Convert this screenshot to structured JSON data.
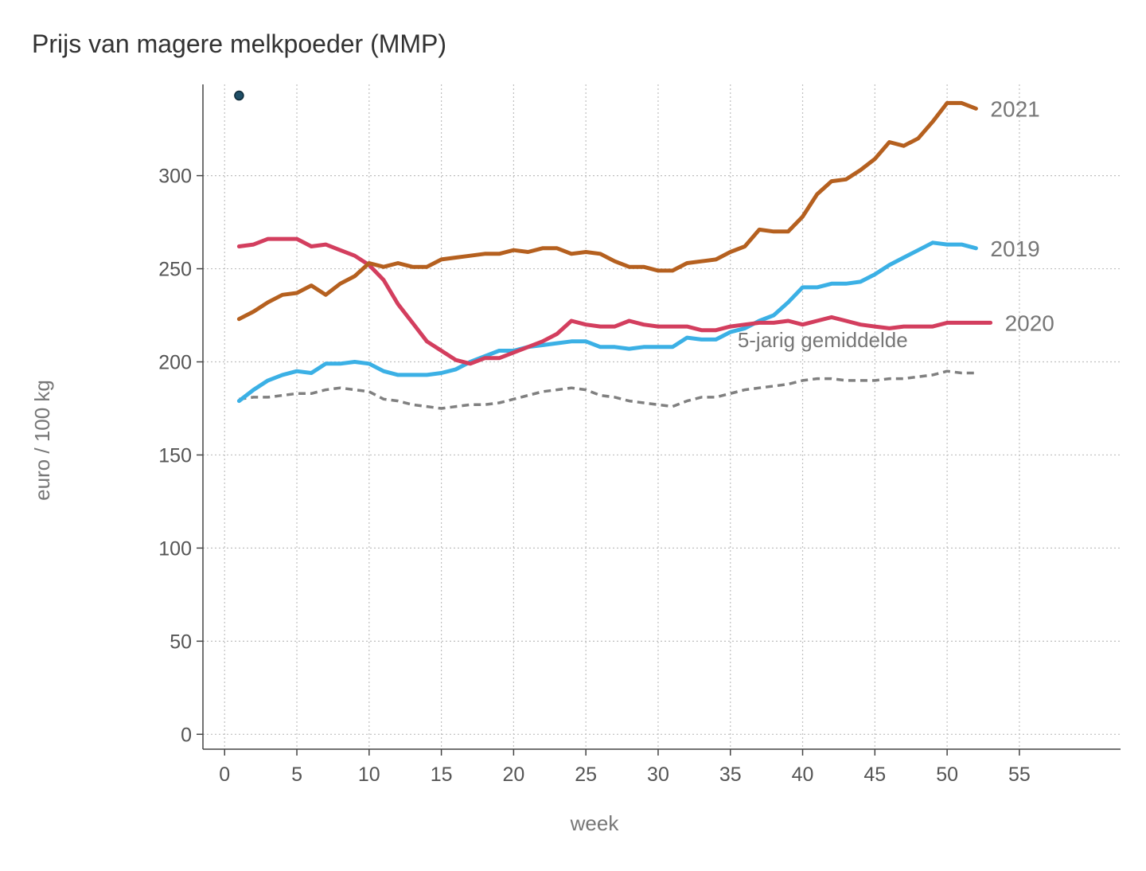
{
  "chart_data": {
    "type": "line",
    "title": "Prijs van magere melkpoeder (MMP)",
    "xlabel": "week",
    "ylabel": "euro / 100 kg",
    "xlim": [
      -1.5,
      62
    ],
    "ylim": [
      -8,
      349
    ],
    "x_ticks": [
      0,
      5,
      10,
      15,
      20,
      25,
      30,
      35,
      40,
      45,
      50,
      55
    ],
    "y_ticks": [
      0,
      50,
      100,
      150,
      200,
      250,
      300
    ],
    "grid": true,
    "marker": {
      "x": 1,
      "y": 343,
      "color": "#1f4e66"
    },
    "annotation": {
      "text": "5-jarig gemiddelde",
      "x": 35.5,
      "y": 208
    },
    "series": [
      {
        "name": "5-jarig gemiddelde",
        "label": "",
        "color": "#808080",
        "dashed": true,
        "x": [
          1,
          2,
          3,
          4,
          5,
          6,
          7,
          8,
          9,
          10,
          11,
          12,
          13,
          14,
          15,
          16,
          17,
          18,
          19,
          20,
          21,
          22,
          23,
          24,
          25,
          26,
          27,
          28,
          29,
          30,
          31,
          32,
          33,
          34,
          35,
          36,
          37,
          38,
          39,
          40,
          41,
          42,
          43,
          44,
          45,
          46,
          47,
          48,
          49,
          50,
          51,
          52
        ],
        "values": [
          180,
          181,
          181,
          182,
          183,
          183,
          185,
          186,
          185,
          184,
          180,
          179,
          177,
          176,
          175,
          176,
          177,
          177,
          178,
          180,
          182,
          184,
          185,
          186,
          185,
          182,
          181,
          179,
          178,
          177,
          176,
          179,
          181,
          181,
          183,
          185,
          186,
          187,
          188,
          190,
          191,
          191,
          190,
          190,
          190,
          191,
          191,
          192,
          193,
          195,
          194,
          194
        ]
      },
      {
        "name": "2019",
        "label": "2019",
        "color": "#3bb0e5",
        "dashed": false,
        "x": [
          1,
          2,
          3,
          4,
          5,
          6,
          7,
          8,
          9,
          10,
          11,
          12,
          13,
          14,
          15,
          16,
          17,
          18,
          19,
          20,
          21,
          22,
          23,
          24,
          25,
          26,
          27,
          28,
          29,
          30,
          31,
          32,
          33,
          34,
          35,
          36,
          37,
          38,
          39,
          40,
          41,
          42,
          43,
          44,
          45,
          46,
          47,
          48,
          49,
          50,
          51,
          52
        ],
        "values": [
          179,
          185,
          190,
          193,
          195,
          194,
          199,
          199,
          200,
          199,
          195,
          193,
          193,
          193,
          194,
          196,
          200,
          203,
          206,
          206,
          208,
          209,
          210,
          211,
          211,
          208,
          208,
          207,
          208,
          208,
          208,
          213,
          212,
          212,
          216,
          218,
          222,
          225,
          232,
          240,
          240,
          242,
          242,
          243,
          247,
          252,
          256,
          260,
          264,
          263,
          263,
          261
        ]
      },
      {
        "name": "2020",
        "label": "2020",
        "color": "#d33e5e",
        "dashed": false,
        "x": [
          1,
          2,
          3,
          4,
          5,
          6,
          7,
          8,
          9,
          10,
          11,
          12,
          13,
          14,
          15,
          16,
          17,
          18,
          19,
          20,
          21,
          22,
          23,
          24,
          25,
          26,
          27,
          28,
          29,
          30,
          31,
          32,
          33,
          34,
          35,
          36,
          37,
          38,
          39,
          40,
          41,
          42,
          43,
          44,
          45,
          46,
          47,
          48,
          49,
          50,
          51,
          52,
          53
        ],
        "values": [
          262,
          263,
          266,
          266,
          266,
          262,
          263,
          260,
          257,
          252,
          244,
          231,
          221,
          211,
          206,
          201,
          199,
          202,
          202,
          205,
          208,
          211,
          215,
          222,
          220,
          219,
          219,
          222,
          220,
          219,
          219,
          219,
          217,
          217,
          219,
          220,
          221,
          221,
          222,
          220,
          222,
          224,
          222,
          220,
          219,
          218,
          219,
          219,
          219,
          221,
          221,
          221,
          221
        ]
      },
      {
        "name": "2021",
        "label": "2021",
        "color": "#b5601f",
        "dashed": false,
        "x": [
          1,
          2,
          3,
          4,
          5,
          6,
          7,
          8,
          9,
          10,
          11,
          12,
          13,
          14,
          15,
          16,
          17,
          18,
          19,
          20,
          21,
          22,
          23,
          24,
          25,
          26,
          27,
          28,
          29,
          30,
          31,
          32,
          33,
          34,
          35,
          36,
          37,
          38,
          39,
          40,
          41,
          42,
          43,
          44,
          45,
          46,
          47,
          48,
          49,
          50,
          51,
          52
        ],
        "values": [
          223,
          227,
          232,
          236,
          237,
          241,
          236,
          242,
          246,
          253,
          251,
          253,
          251,
          251,
          255,
          256,
          257,
          258,
          258,
          260,
          259,
          261,
          261,
          258,
          259,
          258,
          254,
          251,
          251,
          249,
          249,
          253,
          254,
          255,
          259,
          262,
          271,
          270,
          270,
          278,
          290,
          297,
          298,
          303,
          309,
          318,
          316,
          320,
          329,
          339,
          339,
          336
        ]
      }
    ]
  }
}
